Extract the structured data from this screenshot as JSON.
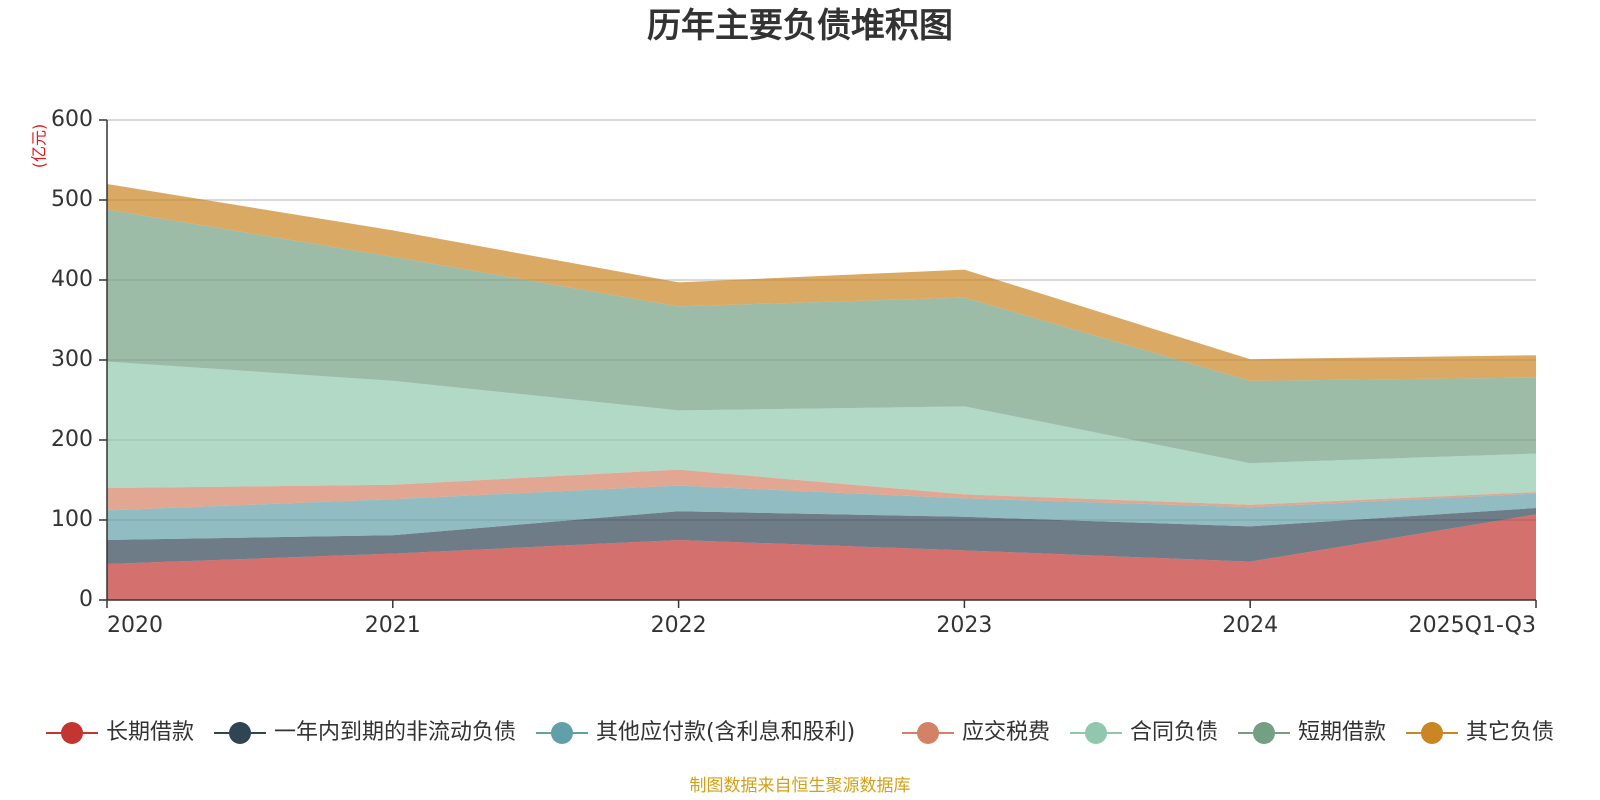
{
  "chart_data": {
    "type": "area",
    "stacked": true,
    "title": "历年主要负债堆积图",
    "unit_label": "(亿元)",
    "categories": [
      "2020",
      "2021",
      "2022",
      "2023",
      "2024",
      "2025Q1-Q3"
    ],
    "y_ticks": [
      0,
      100,
      200,
      300,
      400,
      500,
      600
    ],
    "ylim": [
      0,
      600
    ],
    "grid": true,
    "legend_position": "bottom",
    "series": [
      {
        "name": "长期借款",
        "color": "#c23531",
        "values": [
          45,
          58,
          75,
          62,
          48,
          107
        ]
      },
      {
        "name": "一年内到期的非流动负债",
        "color": "#2f4554",
        "values": [
          30,
          23,
          36,
          42,
          44,
          8
        ]
      },
      {
        "name": "其他应付款(含利息和股利)",
        "color": "#61a0a8",
        "values": [
          37,
          45,
          32,
          23,
          24,
          18
        ]
      },
      {
        "name": "应交税费",
        "color": "#d48265",
        "values": [
          28,
          18,
          20,
          5,
          3,
          2
        ]
      },
      {
        "name": "合同负债",
        "color": "#91c7ae",
        "values": [
          158,
          130,
          74,
          110,
          52,
          48
        ]
      },
      {
        "name": "短期借款",
        "color": "#749f83",
        "values": [
          190,
          155,
          130,
          136,
          103,
          95
        ]
      },
      {
        "name": "其它负债",
        "color": "#ca8622",
        "values": [
          32,
          33,
          30,
          35,
          27,
          28
        ]
      }
    ],
    "source_note": "制图数据来自恒生聚源数据库"
  }
}
